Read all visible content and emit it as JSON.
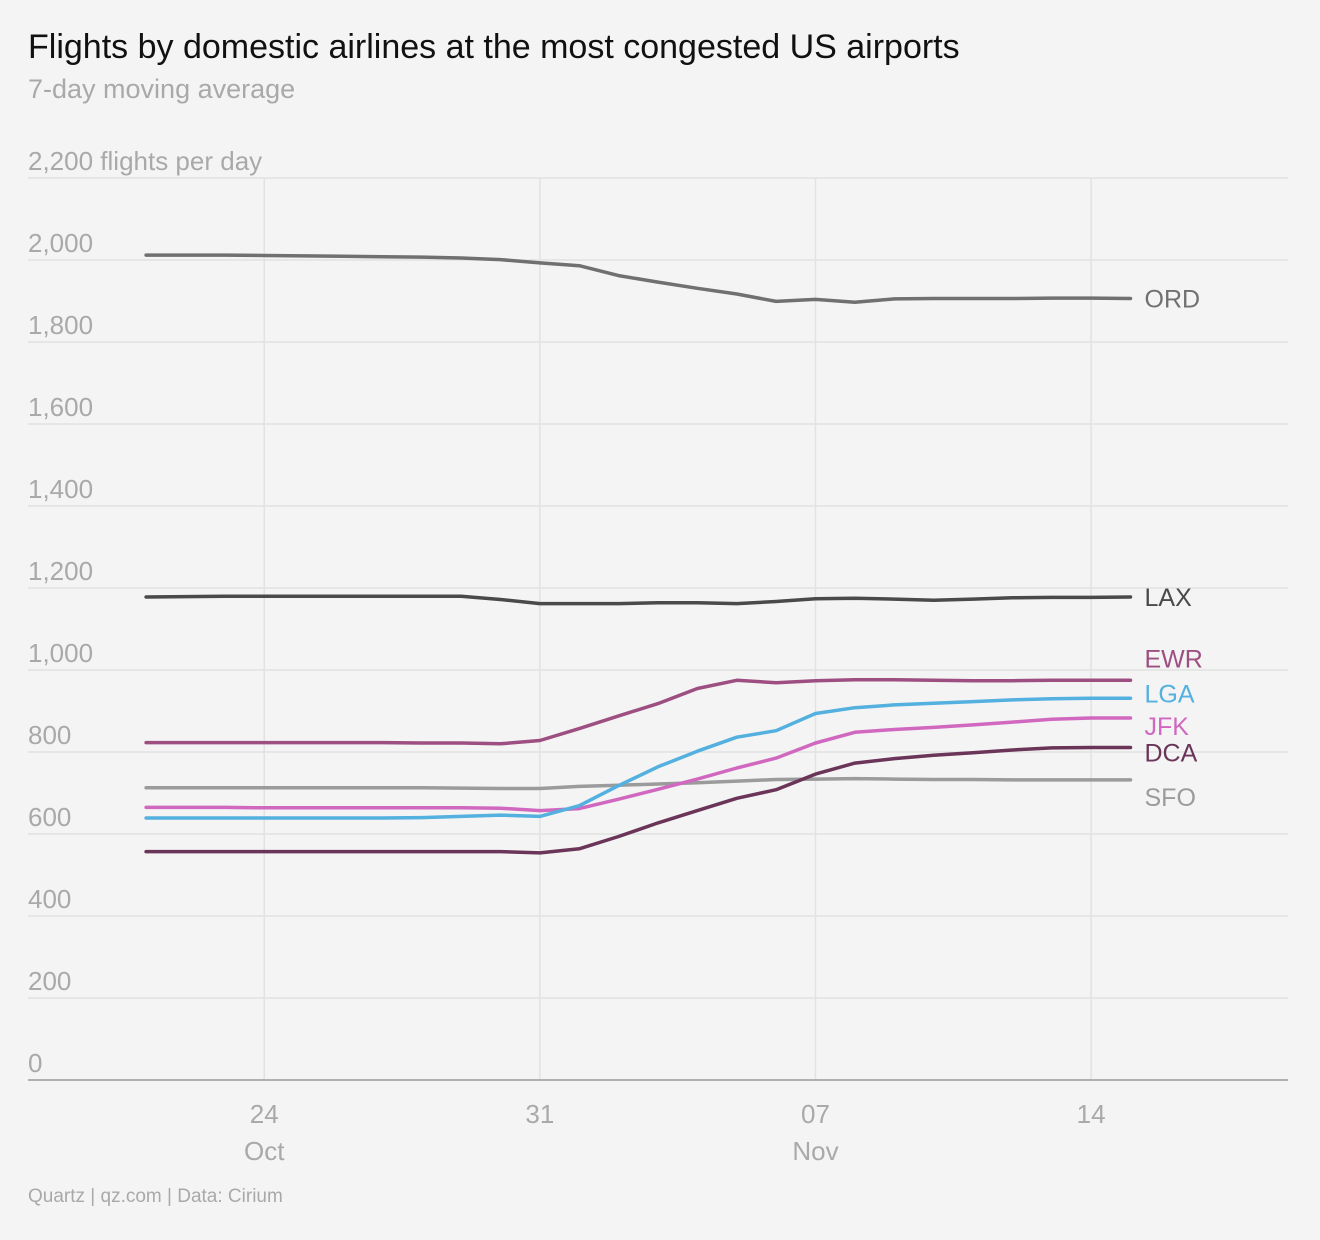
{
  "title": "Flights by domestic airlines at the most congested US airports",
  "subtitle": "7-day moving average",
  "footer": "Quartz | qz.com | Data: Cirium",
  "chart_data": {
    "type": "line",
    "ylabel": "flights per day",
    "ylim": [
      0,
      2200
    ],
    "yticks": [
      0,
      200,
      400,
      600,
      800,
      1000,
      1200,
      1400,
      1600,
      1800,
      2000,
      2200
    ],
    "ytick_labels": [
      "0",
      "200",
      "400",
      "600",
      "800",
      "1,000",
      "1,200",
      "1,400",
      "1,600",
      "1,800",
      "2,000",
      "2,200 flights per day"
    ],
    "xlim": [
      "2020-10-18",
      "2020-11-19"
    ],
    "x_ticks": [
      {
        "date": "2020-10-24",
        "day": "24",
        "month": "Oct"
      },
      {
        "date": "2020-10-31",
        "day": "31",
        "month": ""
      },
      {
        "date": "2020-11-07",
        "day": "07",
        "month": "Nov"
      },
      {
        "date": "2020-11-14",
        "day": "14",
        "month": ""
      }
    ],
    "grid": true,
    "x": [
      "2020-10-21",
      "2020-10-22",
      "2020-10-23",
      "2020-10-24",
      "2020-10-25",
      "2020-10-26",
      "2020-10-27",
      "2020-10-28",
      "2020-10-29",
      "2020-10-30",
      "2020-10-31",
      "2020-11-01",
      "2020-11-02",
      "2020-11-03",
      "2020-11-04",
      "2020-11-05",
      "2020-11-06",
      "2020-11-07",
      "2020-11-08",
      "2020-11-09",
      "2020-11-10",
      "2020-11-11",
      "2020-11-12",
      "2020-11-13",
      "2020-11-14",
      "2020-11-15"
    ],
    "series": [
      {
        "name": "ORD",
        "color": "#707070",
        "values": [
          2012,
          2012,
          2012,
          2011,
          2010,
          2009,
          2008,
          2007,
          2005,
          2001,
          1993,
          1986,
          1962,
          1946,
          1931,
          1917,
          1899,
          1904,
          1897,
          1905,
          1906,
          1906,
          1906,
          1907,
          1907,
          1906
        ]
      },
      {
        "name": "LAX",
        "color": "#4a4a4a",
        "values": [
          1178,
          1179,
          1180,
          1180,
          1180,
          1180,
          1180,
          1180,
          1180,
          1172,
          1162,
          1162,
          1162,
          1164,
          1164,
          1162,
          1167,
          1174,
          1175,
          1173,
          1170,
          1173,
          1176,
          1177,
          1177,
          1178
        ]
      },
      {
        "name": "EWR",
        "color": "#9e4f82",
        "values": [
          823,
          823,
          823,
          823,
          823,
          823,
          823,
          822,
          822,
          820,
          828,
          857,
          888,
          918,
          955,
          975,
          969,
          974,
          976,
          976,
          975,
          974,
          974,
          975,
          975,
          975
        ]
      },
      {
        "name": "LGA",
        "color": "#53b0df",
        "values": [
          639,
          639,
          639,
          639,
          639,
          639,
          639,
          640,
          643,
          646,
          643,
          669,
          718,
          764,
          802,
          836,
          852,
          894,
          908,
          915,
          919,
          923,
          927,
          930,
          931,
          931
        ]
      },
      {
        "name": "JFK",
        "color": "#d168c0",
        "values": [
          665,
          665,
          665,
          664,
          664,
          664,
          664,
          664,
          664,
          663,
          657,
          662,
          685,
          709,
          734,
          761,
          785,
          822,
          848,
          855,
          860,
          866,
          873,
          880,
          883,
          883
        ]
      },
      {
        "name": "DCA",
        "color": "#6a3558",
        "values": [
          557,
          557,
          557,
          557,
          557,
          557,
          557,
          557,
          557,
          557,
          554,
          564,
          594,
          627,
          657,
          687,
          708,
          746,
          773,
          784,
          792,
          798,
          805,
          810,
          811,
          811
        ]
      },
      {
        "name": "SFO",
        "color": "#9b9b9b",
        "values": [
          713,
          713,
          713,
          713,
          713,
          713,
          713,
          713,
          712,
          711,
          711,
          716,
          719,
          722,
          725,
          729,
          733,
          734,
          735,
          734,
          733,
          733,
          732,
          732,
          732,
          732
        ]
      }
    ],
    "end_labels": [
      {
        "name": "ORD",
        "value": 1906
      },
      {
        "name": "LAX",
        "value": 1178
      },
      {
        "name": "EWR",
        "value": 1028
      },
      {
        "name": "LGA",
        "value": 943
      },
      {
        "name": "JFK",
        "value": 863
      },
      {
        "name": "DCA",
        "value": 799
      },
      {
        "name": "SFO",
        "value": 690
      }
    ]
  }
}
